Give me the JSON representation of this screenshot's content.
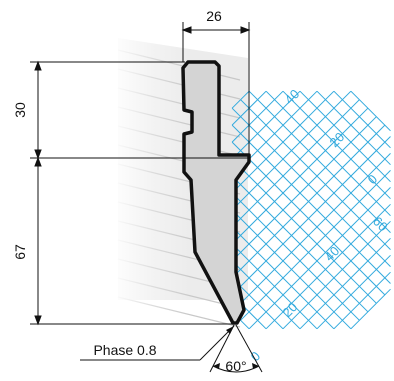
{
  "dimensions": {
    "top_width": "26",
    "upper_height": "30",
    "lower_height": "67",
    "tip_angle": "60°",
    "tip_note": "Phase 0.8"
  },
  "grid_scale": {
    "upper_axis": [
      "40",
      "20",
      "0"
    ],
    "right_axis": [
      "60",
      "40",
      "20",
      "0"
    ]
  },
  "colors": {
    "outline": "#111111",
    "profile_fill": "#d4d4d4",
    "grid": "#33aadd",
    "hatching": "#c8c8c8"
  }
}
